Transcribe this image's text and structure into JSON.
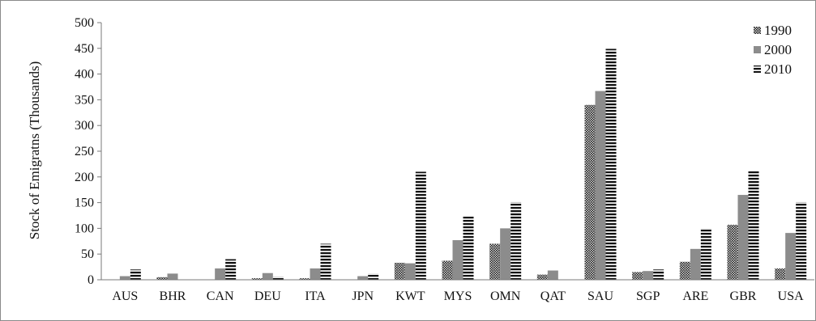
{
  "chart_data": {
    "type": "bar",
    "categories": [
      "AUS",
      "BHR",
      "CAN",
      "DEU",
      "ITA",
      "JPN",
      "KWT",
      "MYS",
      "OMN",
      "QAT",
      "SAU",
      "SGP",
      "ARE",
      "GBR",
      "USA"
    ],
    "series": [
      {
        "name": "1990",
        "values": [
          0,
          5,
          0,
          3,
          3,
          0,
          33,
          37,
          70,
          10,
          340,
          15,
          35,
          107,
          22
        ],
        "color": "#5a5a5a",
        "pattern": "dots"
      },
      {
        "name": "2000",
        "values": [
          7,
          12,
          22,
          13,
          22,
          7,
          32,
          77,
          100,
          18,
          367,
          17,
          60,
          165,
          91
        ],
        "color": "#8c8c8c",
        "pattern": "solid"
      },
      {
        "name": "2010",
        "values": [
          20,
          0,
          40,
          6,
          70,
          12,
          210,
          123,
          151,
          0,
          449,
          20,
          100,
          212,
          151
        ],
        "color": "#3c3c3c",
        "pattern": "hstripes"
      }
    ],
    "yticks": [
      "0",
      "50",
      "100",
      "150",
      "200",
      "250",
      "300",
      "350",
      "400",
      "450",
      "500"
    ],
    "ylabel": "Stock of Emigratns (Thousands)",
    "xlabel": "",
    "title": "",
    "ylim": [
      0,
      500
    ],
    "grid": false,
    "legend_position": "top-right"
  }
}
